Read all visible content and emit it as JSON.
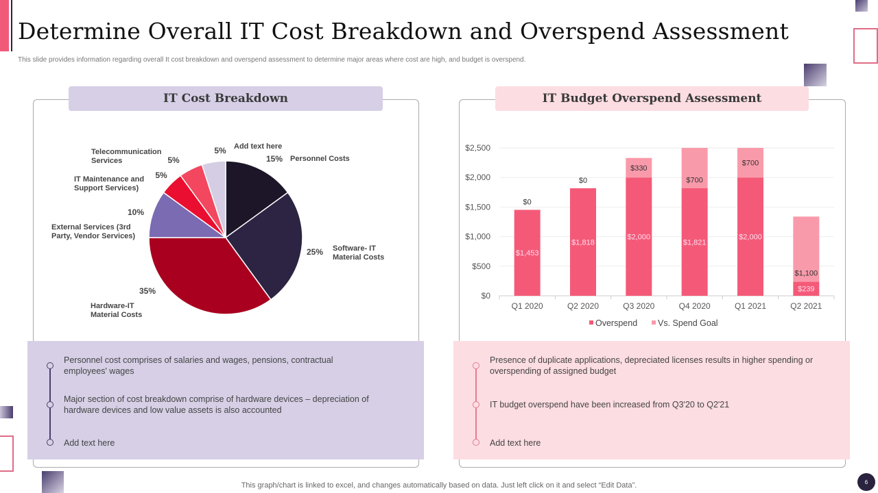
{
  "title": "Determine Overall IT Cost Breakdown and Overspend Assessment",
  "subtitle": "This slide provides information regarding overall It  cost breakdown and overspend assessment to determine major areas where cost are high, and budget is overspend.",
  "left": {
    "header": "IT Cost Breakdown",
    "bullets": [
      "Personnel cost comprises of salaries and wages, pensions, contractual employees' wages",
      "Major section of cost breakdown  comprise of hardware devices – depreciation of hardware  devices and low value  assets is also accounted",
      "Add text here"
    ]
  },
  "right": {
    "header": "IT Budget Overspend Assessment",
    "bullets": [
      "Presence of duplicate applications, depreciated licenses results in higher spending or overspending  of assigned budget",
      "IT budget overspend  have been increased from Q3'20 to Q2'21",
      "Add text here"
    ]
  },
  "footer": "This graph/chart is linked to excel, and changes automatically based on data. Just left click on it and select “Edit Data”.",
  "page_number": "6",
  "colors": {
    "accent_pink": "#f05a78",
    "lavender": "#d6cfe6",
    "light_pink": "#fcdde2",
    "dark_navy": "#2b2240"
  },
  "chart_data": [
    {
      "type": "pie",
      "slices": [
        {
          "label": "Personnel Costs",
          "value": 15,
          "pct": "15%",
          "color": "#1c1628"
        },
        {
          "label": "Software- IT Material Costs",
          "value": 25,
          "pct": "25%",
          "color": "#2d2443"
        },
        {
          "label": "Hardware-IT Material Costs",
          "value": 35,
          "pct": "35%",
          "color": "#a8001e"
        },
        {
          "label": "External Services (3rd Party, Vendor Services)",
          "value": 10,
          "pct": "10%",
          "color": "#7b6bb2"
        },
        {
          "label": "IT Maintenance and Support Services)",
          "value": 5,
          "pct": "5%",
          "color": "#ea0f30"
        },
        {
          "label": "Telecommunication Services",
          "value": 5,
          "pct": "5%",
          "color": "#f2475f"
        },
        {
          "label": "Add text here",
          "value": 5,
          "pct": "5%",
          "color": "#d4cde3"
        }
      ]
    },
    {
      "type": "bar",
      "stacked": true,
      "categories": [
        "Q1 2020",
        "Q2 2020",
        "Q3 2020",
        "Q4 2020",
        "Q1 2021",
        "Q2 2021"
      ],
      "series": [
        {
          "name": "Overspend",
          "values": [
            1453,
            1818,
            2000,
            1821,
            2000,
            239
          ],
          "labels": [
            "$1,453",
            "$1,818",
            "$2,000",
            "$1,821",
            "$2,000",
            "$239"
          ],
          "color": "#f45a78"
        },
        {
          "name": "Vs. Spend Goal",
          "values": [
            0,
            0,
            330,
            700,
            700,
            1100
          ],
          "labels": [
            "$0",
            "$0",
            "$330",
            "$700",
            "$700",
            "$1,100"
          ],
          "color": "#f99aaa"
        }
      ],
      "ylim": [
        0,
        2500
      ],
      "yticks": [
        "$0",
        "$500",
        "$1,000",
        "$1,500",
        "$2,000",
        "$2,500"
      ],
      "grid": true,
      "legend": "bottom"
    }
  ]
}
